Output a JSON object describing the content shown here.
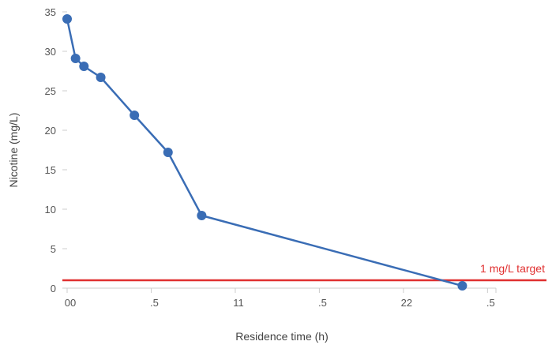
{
  "chart_data": {
    "type": "line",
    "title": "",
    "xlabel": "Residence time (h)",
    "ylabel": "Nicotine (mg/L)",
    "ylim": [
      0,
      35
    ],
    "yticks": [
      0,
      5,
      10,
      15,
      20,
      25,
      30,
      35
    ],
    "xticks": [
      {
        "value": 0,
        "label": "00"
      },
      {
        "value": 0.5,
        "label": ".5"
      },
      {
        "value": 1,
        "label": "11"
      },
      {
        "value": 1.5,
        "label": ".5"
      },
      {
        "value": 2,
        "label": "22"
      },
      {
        "value": 2.5,
        "label": ".5"
      }
    ],
    "xlim": [
      0,
      2.55
    ],
    "grid": false,
    "series": [
      {
        "name": "",
        "color": "#3a6db5",
        "x": [
          0,
          0.05,
          0.1,
          0.2,
          0.4,
          0.6,
          0.8,
          2.35
        ],
        "y": [
          34.1,
          29.1,
          28.1,
          26.7,
          21.9,
          17.2,
          9.2,
          0.3
        ]
      }
    ],
    "reference_line": {
      "y": 1,
      "label": "1 mg/L target",
      "color": "#e03030"
    }
  }
}
